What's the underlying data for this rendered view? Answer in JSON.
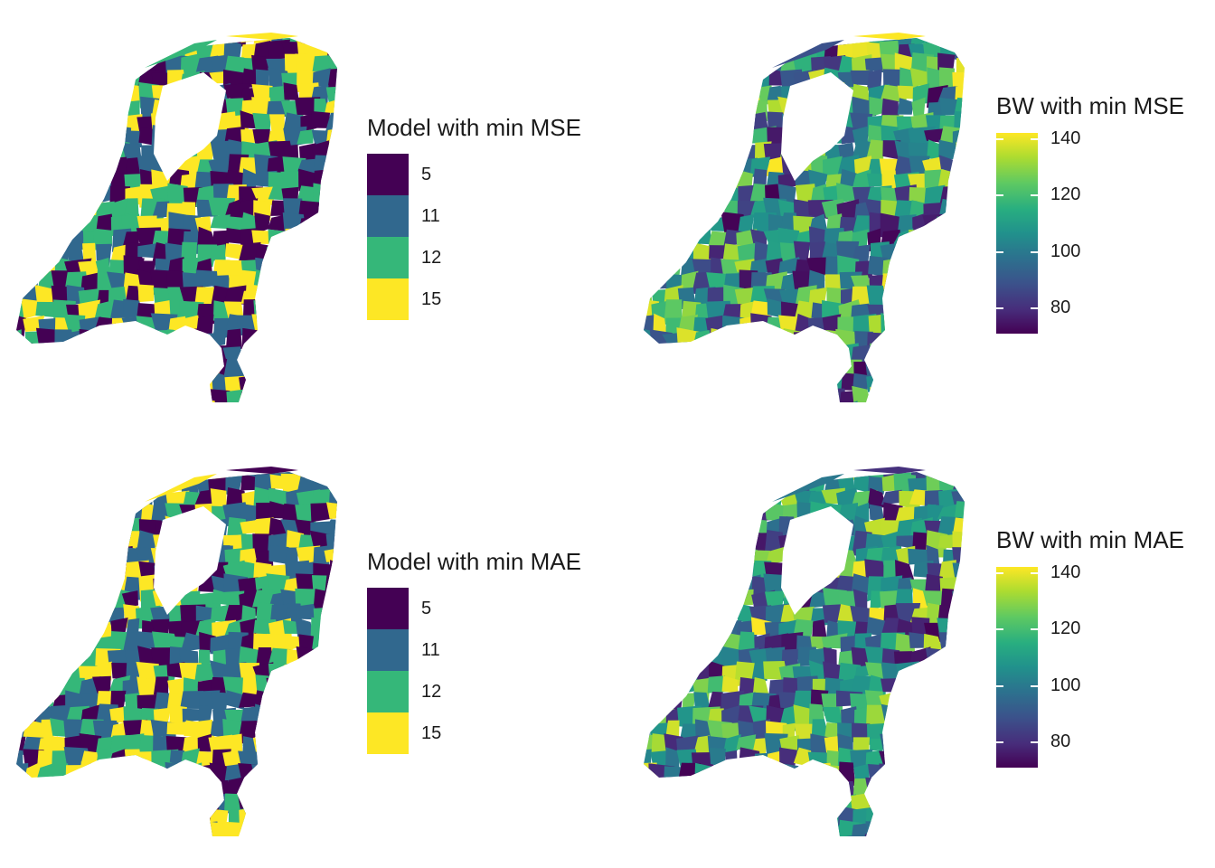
{
  "panels": [
    {
      "id": "mse-model",
      "legend_type": "discrete",
      "legend_title": "Model with min MSE",
      "categories": [
        {
          "label": "5",
          "color": "#440154"
        },
        {
          "label": "11",
          "color": "#31688e"
        },
        {
          "label": "12",
          "color": "#35b779"
        },
        {
          "label": "15",
          "color": "#fde725"
        }
      ]
    },
    {
      "id": "mse-bw",
      "legend_type": "continuous",
      "legend_title": "BW with min MSE",
      "scale": {
        "min": 68,
        "max": 143,
        "ticks": [
          "80",
          "100",
          "120",
          "140"
        ],
        "palette": "viridis"
      }
    },
    {
      "id": "mae-model",
      "legend_type": "discrete",
      "legend_title": "Model with min MAE",
      "categories": [
        {
          "label": "5",
          "color": "#440154"
        },
        {
          "label": "11",
          "color": "#31688e"
        },
        {
          "label": "12",
          "color": "#35b779"
        },
        {
          "label": "15",
          "color": "#fde725"
        }
      ]
    },
    {
      "id": "mae-bw",
      "legend_type": "continuous",
      "legend_title": "BW with min MAE",
      "scale": {
        "min": 68,
        "max": 143,
        "ticks": [
          "80",
          "100",
          "120",
          "140"
        ],
        "palette": "viridis"
      }
    }
  ]
}
